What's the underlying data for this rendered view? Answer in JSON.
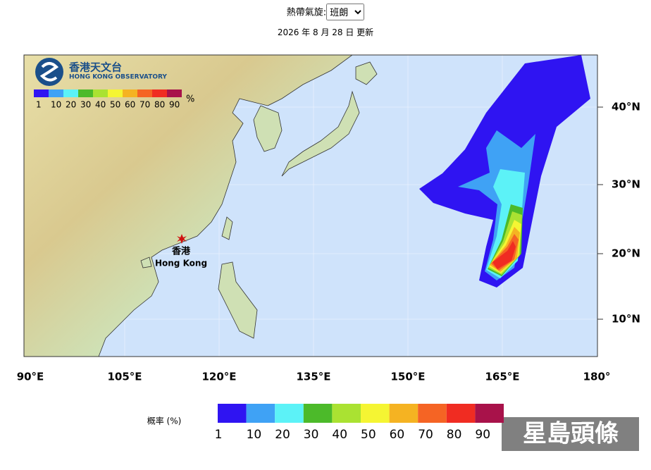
{
  "header": {
    "label": "熱帶氣旋:",
    "select": "班朗",
    "updated": "2026 年 8 月 28 日 更新"
  },
  "map": {
    "logo_zh": "香港天文台",
    "logo_en": "HONG KONG OBSERVATORY",
    "inset_legend": {
      "labels": [
        "1",
        "10",
        "20",
        "30",
        "40",
        "50",
        "60",
        "70",
        "80",
        "90"
      ],
      "unit": "%"
    },
    "place_zh": "香港",
    "place_en": "Hong Kong",
    "lat_labels": [
      "40°N",
      "30°N",
      "20°N",
      "10°N"
    ],
    "lon_labels": [
      "90°E",
      "105°E",
      "120°E",
      "135°E",
      "150°E",
      "165°E",
      "180°"
    ]
  },
  "legend": {
    "title": "概率 (%)",
    "labels": [
      "1",
      "10",
      "20",
      "30",
      "40",
      "50",
      "60",
      "70",
      "80",
      "90"
    ],
    "colors": [
      "#2f14f2",
      "#3fa2f5",
      "#5cf2f7",
      "#4cba2a",
      "#aae232",
      "#f5f533",
      "#f5b322",
      "#f56424",
      "#f02c22",
      "#a8124a"
    ]
  },
  "watermark": "星島頭條"
}
